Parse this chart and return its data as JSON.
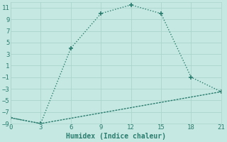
{
  "xlabel": "Humidex (Indice chaleur)",
  "line1_x": [
    0,
    3,
    6,
    9,
    12,
    15,
    18,
    21
  ],
  "line1_y": [
    -8,
    -9,
    4,
    10,
    11.5,
    10,
    -1,
    -3.5
  ],
  "line2_x": [
    0,
    3,
    21
  ],
  "line2_y": [
    -8,
    -9,
    -3.5
  ],
  "line_color": "#2a7d6e",
  "xlim": [
    0,
    21
  ],
  "ylim": [
    -9,
    12
  ],
  "xticks": [
    0,
    3,
    6,
    9,
    12,
    15,
    18,
    21
  ],
  "yticks": [
    -9,
    -7,
    -5,
    -3,
    -1,
    1,
    3,
    5,
    7,
    9,
    11
  ],
  "bg_color": "#c5e8e2",
  "grid_color": "#aad4cc",
  "font_color": "#2a7d6e",
  "font_size": 6.5,
  "xlabel_size": 7
}
